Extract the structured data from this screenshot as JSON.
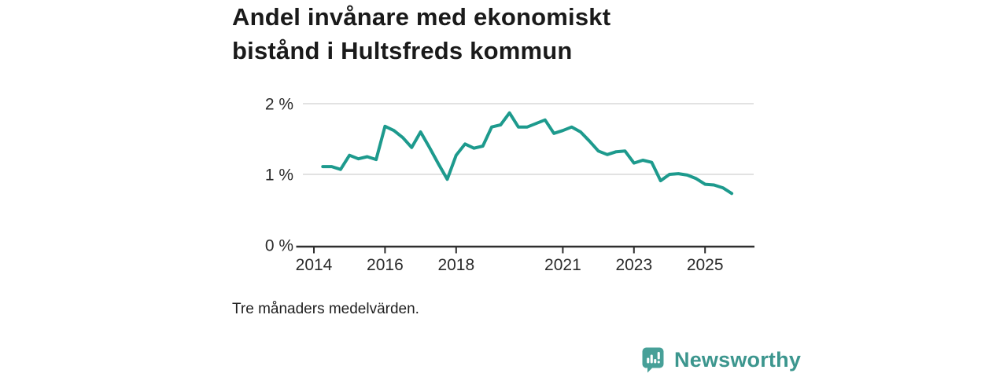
{
  "title": {
    "line1": "Andel invånare med ekonomiskt",
    "line2": "bistånd i Hultsfreds kommun"
  },
  "caption": "Tre månaders medelvärden.",
  "branding": {
    "name": "Newsworthy",
    "wordmark_color": "#3c968e",
    "mark_color": "#47a098",
    "mark_icon": "speech-bubble-bar-chart-exclamation"
  },
  "chart_data": {
    "type": "line",
    "title": "Andel invånare med ekonomiskt bistånd i Hultsfreds kommun",
    "note": "Tre månaders medelvärden.",
    "x_start": 2014.25,
    "x_step_years": 0.25,
    "values": [
      1.11,
      1.11,
      1.07,
      1.27,
      1.22,
      1.25,
      1.21,
      1.68,
      1.62,
      1.52,
      1.38,
      1.6,
      1.38,
      1.15,
      0.93,
      1.27,
      1.43,
      1.37,
      1.4,
      1.67,
      1.7,
      1.87,
      1.67,
      1.67,
      1.72,
      1.77,
      1.58,
      1.62,
      1.67,
      1.6,
      1.47,
      1.33,
      1.28,
      1.32,
      1.33,
      1.16,
      1.2,
      1.17,
      0.91,
      1.0,
      1.01,
      0.99,
      0.94,
      0.86,
      0.85,
      0.81,
      0.73
    ],
    "ylim": [
      0,
      2
    ],
    "yticks": [
      {
        "value": 0,
        "label": "0 %"
      },
      {
        "value": 1,
        "label": "1 %"
      },
      {
        "value": 2,
        "label": "2 %"
      }
    ],
    "xticks": [
      {
        "year": 2014,
        "label": "2014"
      },
      {
        "year": 2016,
        "label": "2016"
      },
      {
        "year": 2018,
        "label": "2018"
      },
      {
        "year": 2021,
        "label": "2021"
      },
      {
        "year": 2023,
        "label": "2023"
      },
      {
        "year": 2025,
        "label": "2025"
      }
    ],
    "grid": true,
    "legend": "none",
    "line_color": "#1d9a8d",
    "grid_color": "#d9d9d9",
    "axis_color": "#2e2e2e",
    "tick_label_color": "#2b2b2b"
  }
}
